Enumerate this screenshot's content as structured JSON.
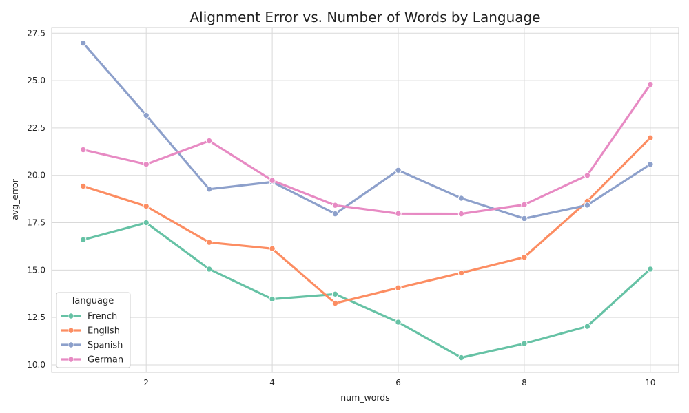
{
  "chart_data": {
    "type": "line",
    "title": "Alignment Error vs. Number of Words by Language",
    "xlabel": "num_words",
    "ylabel": "avg_error",
    "xlim": [
      0.5,
      10.45
    ],
    "ylim": [
      9.6,
      27.8
    ],
    "xticks": [
      2,
      4,
      6,
      8,
      10
    ],
    "yticks": [
      10.0,
      12.5,
      15.0,
      17.5,
      20.0,
      22.5,
      25.0,
      27.5
    ],
    "ytick_labels": [
      "10.0",
      "12.5",
      "15.0",
      "17.5",
      "20.0",
      "22.5",
      "25.0",
      "27.5"
    ],
    "grid": true,
    "legend": {
      "title": "language",
      "placement": "lower-left"
    },
    "x": [
      1,
      2,
      3,
      4,
      5,
      6,
      7,
      8,
      9,
      10
    ],
    "series": [
      {
        "name": "French",
        "color": "#66c2a5",
        "values": [
          16.6,
          17.5,
          15.05,
          13.47,
          13.73,
          12.25,
          10.38,
          11.12,
          12.03,
          15.05
        ]
      },
      {
        "name": "English",
        "color": "#fc8d62",
        "values": [
          19.43,
          18.37,
          16.46,
          16.13,
          13.25,
          14.06,
          14.85,
          15.68,
          18.63,
          21.98
        ]
      },
      {
        "name": "Spanish",
        "color": "#8da0cb",
        "values": [
          26.98,
          23.17,
          19.27,
          19.65,
          17.97,
          20.27,
          18.79,
          17.72,
          18.43,
          20.58
        ]
      },
      {
        "name": "German",
        "color": "#e78ac3",
        "values": [
          21.35,
          20.58,
          21.82,
          19.73,
          18.42,
          17.98,
          17.97,
          18.45,
          20.0,
          24.8
        ]
      }
    ]
  }
}
